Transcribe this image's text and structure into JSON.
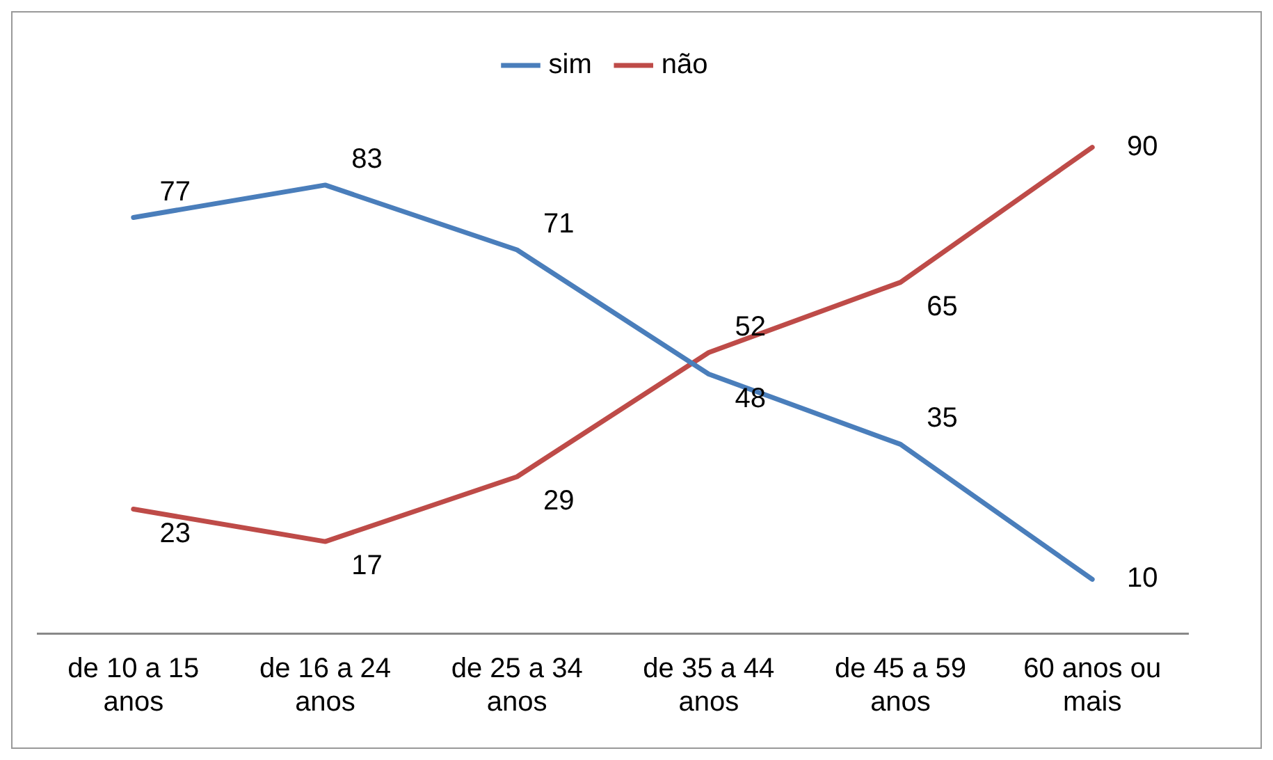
{
  "chart_data": {
    "type": "line",
    "categories": [
      "de 10 a 15 anos",
      "de 16 a 24 anos",
      "de 25 a 34 anos",
      "de 35 a 44 anos",
      "de 45 a 59 anos",
      "60 anos ou mais"
    ],
    "series": [
      {
        "name": "sim",
        "color": "#4a7ebb",
        "values": [
          77,
          83,
          71,
          48,
          35,
          10
        ]
      },
      {
        "name": "não",
        "color": "#be4b48",
        "values": [
          23,
          17,
          29,
          52,
          65,
          90
        ]
      }
    ],
    "tick_labels": "x",
    "grid": false,
    "legend": "top",
    "marker": "none",
    "line_style": "solid",
    "data_labels": true
  }
}
